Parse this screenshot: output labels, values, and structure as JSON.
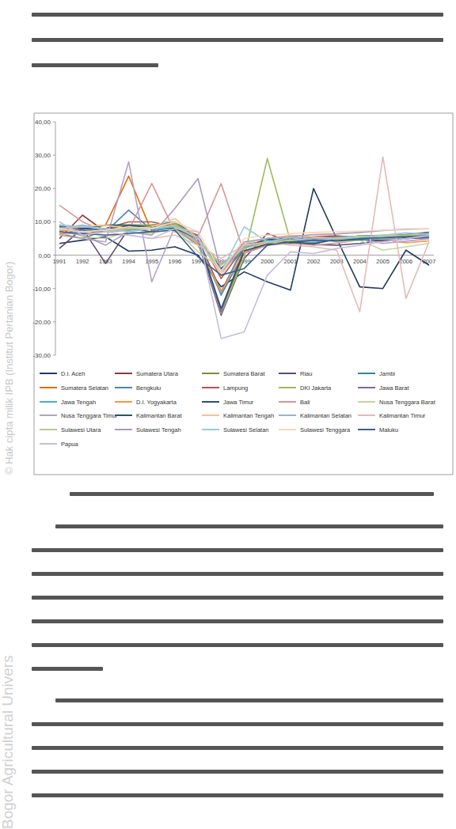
{
  "chart_data": {
    "type": "line",
    "categories": [
      "1991",
      "1992",
      "1993",
      "1994",
      "1995",
      "1996",
      "1997",
      "1998",
      "1999",
      "2000",
      "2001",
      "2002",
      "2003",
      "2004",
      "2005",
      "2006",
      "2007"
    ],
    "ylim": [
      -30,
      40
    ],
    "yticks": [
      {
        "value": -30,
        "label": "-30,00"
      },
      {
        "value": -20,
        "label": "-20,00"
      },
      {
        "value": -10,
        "label": "-10,00"
      },
      {
        "value": 0,
        "label": "0,00"
      },
      {
        "value": 10,
        "label": "10,00"
      },
      {
        "value": 20,
        "label": "20,00"
      },
      {
        "value": 30,
        "label": "30,00"
      },
      {
        "value": 40,
        "label": "40,00"
      }
    ],
    "grid": false,
    "legend": "bottom",
    "series": [
      {
        "name": "D.I. Aceh",
        "color": "#1f3864",
        "values": [
          3.5,
          4.5,
          5.5,
          1.2,
          1.5,
          2.5,
          0,
          -9.5,
          -5,
          -8,
          -10.5,
          20,
          5,
          -9.5,
          -10,
          1.5,
          -3
        ]
      },
      {
        "name": "Sumatera Utara",
        "color": "#943634",
        "values": [
          5,
          12,
          7,
          9,
          9,
          9.5,
          5,
          -10.9,
          2.6,
          4.8,
          3.7,
          4.1,
          4.8,
          5.7,
          5.5,
          6.2,
          6.9
        ]
      },
      {
        "name": "Sumatera Barat",
        "color": "#76923c",
        "values": [
          6.5,
          5,
          7.5,
          8.5,
          8,
          9,
          5.5,
          -17.5,
          1,
          3.5,
          4.1,
          4.7,
          5.3,
          5.5,
          5.7,
          6.1,
          6.3
        ]
      },
      {
        "name": "Riau",
        "color": "#5f497a",
        "values": [
          2,
          8,
          -2.5,
          8,
          7,
          9,
          4,
          -18,
          -1,
          6.5,
          4,
          3.2,
          3,
          3.5,
          4.5,
          5,
          5.2
        ]
      },
      {
        "name": "Jambi",
        "color": "#31859c",
        "values": [
          8,
          7,
          8,
          7.5,
          9,
          10,
          5.5,
          -5,
          2,
          4.5,
          5,
          5.4,
          5.6,
          5.4,
          5.6,
          5.9,
          6.8
        ]
      },
      {
        "name": "Sumatera Selatan",
        "color": "#e36c09",
        "values": [
          6,
          8,
          9,
          23.7,
          7,
          9.5,
          5,
          -3,
          2.5,
          3.5,
          4,
          4.5,
          4.9,
          4.6,
          4.8,
          5.2,
          5.8
        ]
      },
      {
        "name": "Bengkulu",
        "color": "#4f81bd",
        "values": [
          9,
          8,
          7,
          13.5,
          7.5,
          8,
          5,
          -12,
          1,
          3,
          4.5,
          4.8,
          5.5,
          5.4,
          5.8,
          6,
          6.1
        ]
      },
      {
        "name": "Lampung",
        "color": "#c0504d",
        "values": [
          7,
          6,
          8,
          10,
          10,
          8.5,
          6,
          -7,
          2.5,
          4,
          4.7,
          5.6,
          5.8,
          5.1,
          4.1,
          4.9,
          5.9
        ]
      },
      {
        "name": "DKI Jakarta",
        "color": "#9bbb59",
        "values": [
          9,
          8.5,
          9,
          9,
          9,
          9.5,
          4.8,
          -17.5,
          -0.5,
          29,
          4.2,
          4.9,
          5.3,
          5.7,
          6,
          6,
          6.4
        ]
      },
      {
        "name": "Jawa Barat",
        "color": "#8064a2",
        "values": [
          8,
          7.5,
          7,
          8,
          8.5,
          9,
          4.8,
          -17,
          2.5,
          4,
          4.5,
          3.9,
          4.9,
          4.8,
          5.6,
          6,
          6.5
        ]
      },
      {
        "name": "Jawa Tengah",
        "color": "#4bacc6",
        "values": [
          7,
          6.5,
          7,
          7.5,
          8,
          7.8,
          3,
          -11.5,
          3.5,
          3.9,
          3.6,
          3.6,
          4.6,
          5.1,
          5.4,
          5.3,
          5.6
        ]
      },
      {
        "name": "D.I. Yogyakarta",
        "color": "#f79646",
        "values": [
          7.5,
          7,
          7.5,
          8,
          8.5,
          8,
          3.5,
          -11,
          1,
          3.5,
          4.2,
          4.5,
          4.6,
          5.1,
          4.7,
          3.7,
          4.3
        ]
      },
      {
        "name": "Jawa Timur",
        "color": "#2c4d75",
        "values": [
          8.5,
          8,
          8,
          8.5,
          8.5,
          8.3,
          5,
          -16,
          1.3,
          3.3,
          3.8,
          3.4,
          4.8,
          5.8,
          5.8,
          5.8,
          6.1
        ]
      },
      {
        "name": "Bali",
        "color": "#d99694",
        "values": [
          15,
          10,
          7,
          7.5,
          21.5,
          7,
          5.5,
          21.5,
          0.5,
          3,
          3.5,
          3,
          3.6,
          4.6,
          5.6,
          5.3,
          5.9
        ]
      },
      {
        "name": "Nusa Tenggara Barat",
        "color": "#c3d69b",
        "values": [
          10,
          5.5,
          5,
          7,
          6.5,
          8,
          1,
          -4,
          3,
          4,
          4.3,
          5,
          4,
          4.5,
          1.5,
          2.5,
          3.5
        ]
      },
      {
        "name": "Nusa Tenggara Timur",
        "color": "#b3a2c7",
        "values": [
          6,
          5,
          4,
          28,
          -8,
          8.5,
          4,
          -2.5,
          2,
          5,
          5.5,
          5,
          4.8,
          4.9,
          3.5,
          4.2,
          4.9
        ]
      },
      {
        "name": "Kalimantan Barat",
        "color": "#215968",
        "values": [
          9,
          8,
          9,
          9,
          8.5,
          8,
          5,
          -4,
          2,
          5,
          3.7,
          4.5,
          4.3,
          4.7,
          4.5,
          5.2,
          6
        ]
      },
      {
        "name": "Kalimantan Tengah",
        "color": "#fac08f",
        "values": [
          8,
          8.5,
          9,
          8,
          8.5,
          11,
          5,
          -6,
          3.5,
          5,
          6,
          5.5,
          5,
          5.6,
          5.9,
          5.8,
          6
        ]
      },
      {
        "name": "Kalimantan Selatan",
        "color": "#95b3d7",
        "values": [
          8,
          9,
          7.5,
          8,
          8,
          9,
          5,
          -5,
          2.5,
          4,
          4.5,
          5,
          5,
          5,
          4.8,
          4.9,
          5.9
        ]
      },
      {
        "name": "Kalimantan Timur",
        "color": "#e6b9b8",
        "values": [
          6,
          7,
          6,
          6,
          5,
          6,
          3,
          -1,
          3,
          4,
          3,
          2.5,
          1.5,
          -17,
          29.5,
          -13,
          4
        ]
      },
      {
        "name": "Sulawesi Utara",
        "color": "#b6cc82",
        "values": [
          7,
          6,
          7,
          8,
          8,
          9,
          5,
          -3,
          2,
          3.7,
          4.5,
          4.1,
          5,
          5.8,
          5.5,
          6,
          6.5
        ]
      },
      {
        "name": "Sulawesi Tengah",
        "color": "#a99bbd",
        "values": [
          7,
          6,
          3,
          7,
          6,
          14,
          23,
          -5,
          4,
          5,
          5.6,
          6.2,
          6.4,
          6.8,
          7.4,
          7.8,
          7.9
        ]
      },
      {
        "name": "Sulawesi Selatan",
        "color": "#92cddc",
        "values": [
          9,
          8.5,
          8,
          7,
          8,
          8.5,
          5,
          -5,
          8.5,
          4,
          5.3,
          4.1,
          5.2,
          5.3,
          6,
          6.7,
          6.3
        ]
      },
      {
        "name": "Sulawesi Tenggara",
        "color": "#fcd5b4",
        "values": [
          8,
          7,
          7.5,
          8.5,
          8,
          10,
          7,
          -5,
          5,
          6,
          6.5,
          6.8,
          7,
          7.2,
          7.5,
          7.6,
          7.9
        ]
      },
      {
        "name": "Maluku",
        "color": "#366092",
        "values": [
          7,
          6.5,
          6,
          6.5,
          7,
          7.5,
          -0.5,
          -6,
          -4,
          3,
          4,
          4.5,
          4.3,
          5,
          5.2,
          5.6,
          5.9
        ]
      },
      {
        "name": "Papua",
        "color": "#c6bcdc",
        "values": [
          10,
          6,
          7,
          6,
          5,
          8,
          7,
          -25,
          -23,
          -6,
          1,
          0.5,
          2,
          3,
          4,
          5,
          6
        ]
      }
    ]
  },
  "page": {
    "watermarks": [
      "© Hak cipta milik IPB (Institut Pertanian Bogor)",
      "Bogor Agricultural Univers"
    ]
  }
}
